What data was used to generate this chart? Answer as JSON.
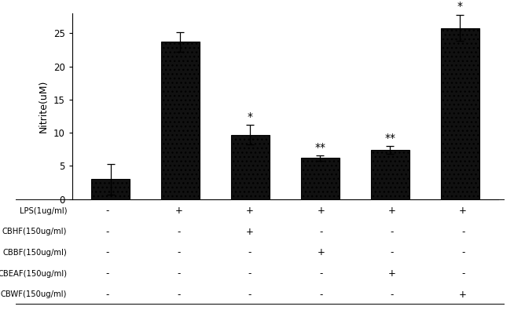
{
  "bar_values": [
    3.0,
    23.7,
    9.7,
    6.2,
    7.4,
    25.8
  ],
  "bar_errors": [
    2.3,
    1.5,
    1.5,
    0.4,
    0.6,
    2.0
  ],
  "bar_color": "#111111",
  "bar_width": 0.55,
  "ylim": [
    0,
    28
  ],
  "yticks": [
    0,
    5,
    10,
    15,
    20,
    25
  ],
  "ylabel": "Nitrite(uM)",
  "significance": [
    "",
    "",
    "*",
    "**",
    "**",
    "*"
  ],
  "table_rows": [
    [
      "LPS(1ug/ml)",
      "-",
      "+",
      "+",
      "+",
      "+",
      "+"
    ],
    [
      "CBHF(150ug/ml)",
      "-",
      "-",
      "+",
      "-",
      "-",
      "-"
    ],
    [
      "CBBF(150ug/ml)",
      "-",
      "-",
      "-",
      "+",
      "-",
      "-"
    ],
    [
      "CBEAF(150ug/ml)",
      "-",
      "-",
      "-",
      "-",
      "+",
      "-"
    ],
    [
      "CBWF(150ug/ml)",
      "-",
      "-",
      "-",
      "-",
      "-",
      "+"
    ]
  ],
  "fig_width": 6.54,
  "fig_height": 4.23,
  "dpi": 100
}
